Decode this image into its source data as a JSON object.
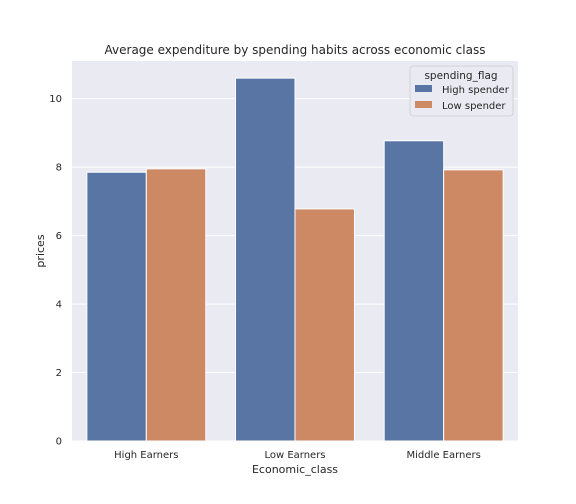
{
  "chart_data": {
    "type": "bar",
    "title": "Average expenditure by spending habits across economic class",
    "xlabel": "Economic_class",
    "ylabel": "prices",
    "categories": [
      "High Earners",
      "Low Earners",
      "Middle Earners"
    ],
    "series": [
      {
        "name": "High spender",
        "color": "#5875a4",
        "values": [
          7.85,
          10.6,
          8.77
        ]
      },
      {
        "name": "Low spender",
        "color": "#cc8963",
        "values": [
          7.95,
          6.78,
          7.92
        ]
      }
    ],
    "ylim": [
      0,
      11.1
    ],
    "yticks": [
      0,
      2,
      4,
      6,
      8,
      10
    ],
    "grid": true,
    "legend": {
      "title": "spending_flag",
      "placement": "top-right"
    },
    "background": "#eaeaf2"
  }
}
